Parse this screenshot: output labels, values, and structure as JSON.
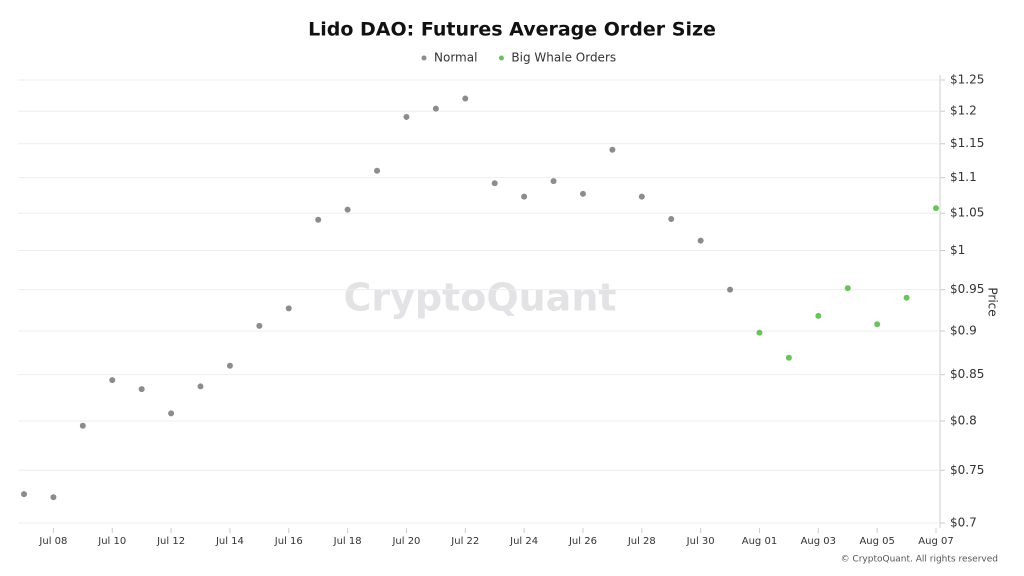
{
  "chart_data": {
    "type": "scatter",
    "title": "Lido DAO: Futures Average Order Size",
    "y_label": "Price",
    "watermark": "CryptoQuant",
    "footer": "© CryptoQuant. All rights reserved",
    "categories": [
      null,
      "Jul 08",
      null,
      "Jul 10",
      null,
      "Jul 12",
      null,
      "Jul 14",
      null,
      "Jul 16",
      null,
      "Jul 18",
      null,
      "Jul 20",
      null,
      "Jul 22",
      null,
      "Jul 24",
      null,
      "Jul 26",
      null,
      "Jul 28",
      null,
      "Jul 30",
      null,
      "Aug 01",
      null,
      "Aug 03",
      null,
      "Aug 05",
      null,
      "Aug 07"
    ],
    "series": [
      {
        "name": "Normal",
        "color": "#8c8c8c",
        "values": [
          0.727,
          0.724,
          0.795,
          0.844,
          0.834,
          0.808,
          0.837,
          0.86,
          0.906,
          0.927,
          1.041,
          1.055,
          1.11,
          1.191,
          1.204,
          1.22,
          1.092,
          1.073,
          1.095,
          1.077,
          1.141,
          1.073,
          1.042,
          1.013,
          0.95,
          null,
          null,
          null,
          null,
          null,
          null,
          null
        ]
      },
      {
        "name": "Big Whale Orders",
        "color": "#6cc25f",
        "values": [
          null,
          null,
          null,
          null,
          null,
          null,
          null,
          null,
          null,
          null,
          null,
          null,
          null,
          null,
          null,
          null,
          null,
          null,
          null,
          null,
          null,
          null,
          null,
          null,
          null,
          0.898,
          0.869,
          0.918,
          0.952,
          0.908,
          0.94,
          1.057
        ]
      }
    ],
    "ylim": [
      0.7,
      1.25
    ],
    "log_scale": true,
    "grid": true,
    "yticks": [
      {
        "value": 0.7,
        "label": "$0.7"
      },
      {
        "value": 0.75,
        "label": "$0.75"
      },
      {
        "value": 0.8,
        "label": "$0.8"
      },
      {
        "value": 0.85,
        "label": "$0.85"
      },
      {
        "value": 0.9,
        "label": "$0.9"
      },
      {
        "value": 0.95,
        "label": "$0.95"
      },
      {
        "value": 1,
        "label": "$1"
      },
      {
        "value": 1.05,
        "label": "$1.05"
      },
      {
        "value": 1.1,
        "label": "$1.1"
      },
      {
        "value": 1.15,
        "label": "$1.15"
      },
      {
        "value": 1.2,
        "label": "$1.2"
      },
      {
        "value": 1.25,
        "label": "$1.25"
      }
    ]
  }
}
